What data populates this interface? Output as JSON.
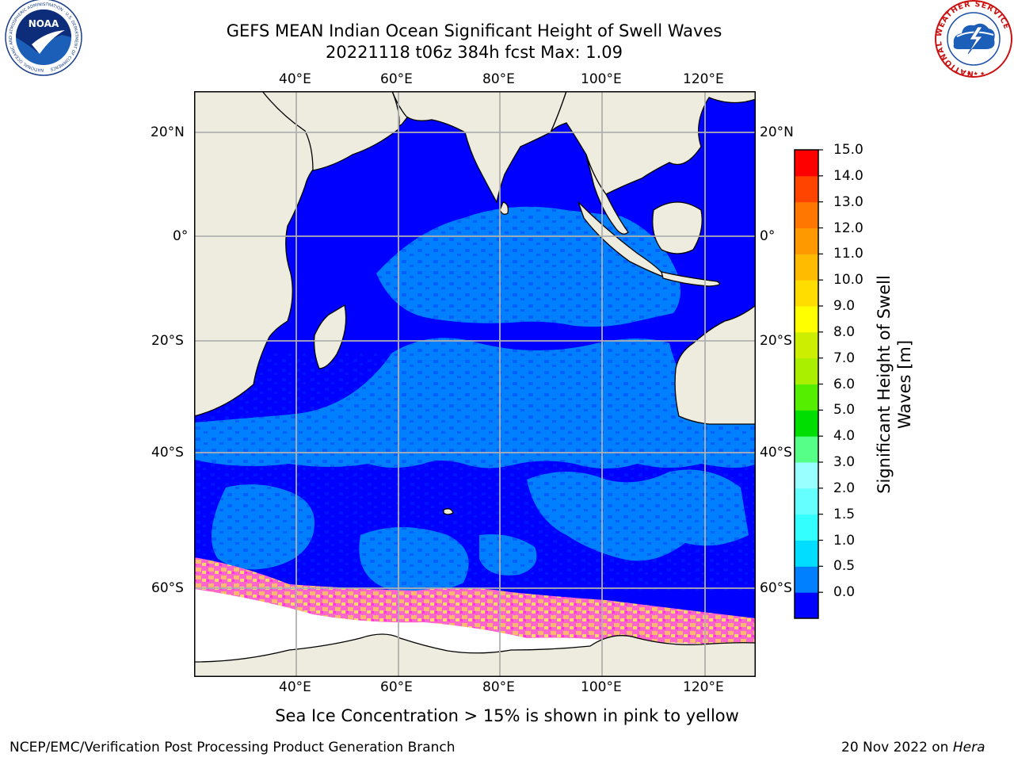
{
  "header": {
    "title_line1": "GEFS MEAN Indian Ocean Significant Height of Swell Waves",
    "title_line2": "20221118 t06z 384h fcst   Max: 1.09"
  },
  "map": {
    "lon_labels": [
      "40°E",
      "60°E",
      "80°E",
      "100°E",
      "120°E"
    ],
    "lat_labels": [
      "20°N",
      "0°",
      "20°S",
      "40°S",
      "60°S"
    ],
    "land_color": "#eeecdf",
    "sea_ice_color_low": "#ff33dd",
    "sea_ice_color_high": "#ffd65a"
  },
  "colorbar": {
    "title": "Significant Height of Swell Waves [m]",
    "ticks": [
      "15.0",
      "14.0",
      "13.0",
      "12.0",
      "11.0",
      "10.0",
      "9.0",
      "8.0",
      "7.0",
      "6.0",
      "5.0",
      "4.0",
      "3.0",
      "2.0",
      "1.5",
      "1.0",
      "0.5",
      "0.0"
    ],
    "colors_bottom_to_top": [
      "#0000ff",
      "#0080ff",
      "#00ddff",
      "#33ffff",
      "#66ffff",
      "#99ffff",
      "#55ff88",
      "#00dd00",
      "#55ee00",
      "#aaee00",
      "#ccee00",
      "#ffff00",
      "#ffdd00",
      "#ffbb00",
      "#ff9900",
      "#ff7700",
      "#ff4400",
      "#ff0000"
    ]
  },
  "caption": "Sea Ice Concentration > 15% is shown in pink to yellow",
  "footer": {
    "left": "NCEP/EMC/Verification Post Processing Product Generation Branch",
    "right_prefix": "20 Nov 2022 on ",
    "right_machine": "Hera"
  },
  "logos": {
    "noaa_text": "NOAA",
    "noaa_ring_text": "NATIONAL OCEANIC AND ATMOSPHERIC ADMINISTRATION · U.S. DEPARTMENT OF COMMERCE",
    "nws_ring_text": "NATIONAL WEATHER SERVICE"
  }
}
